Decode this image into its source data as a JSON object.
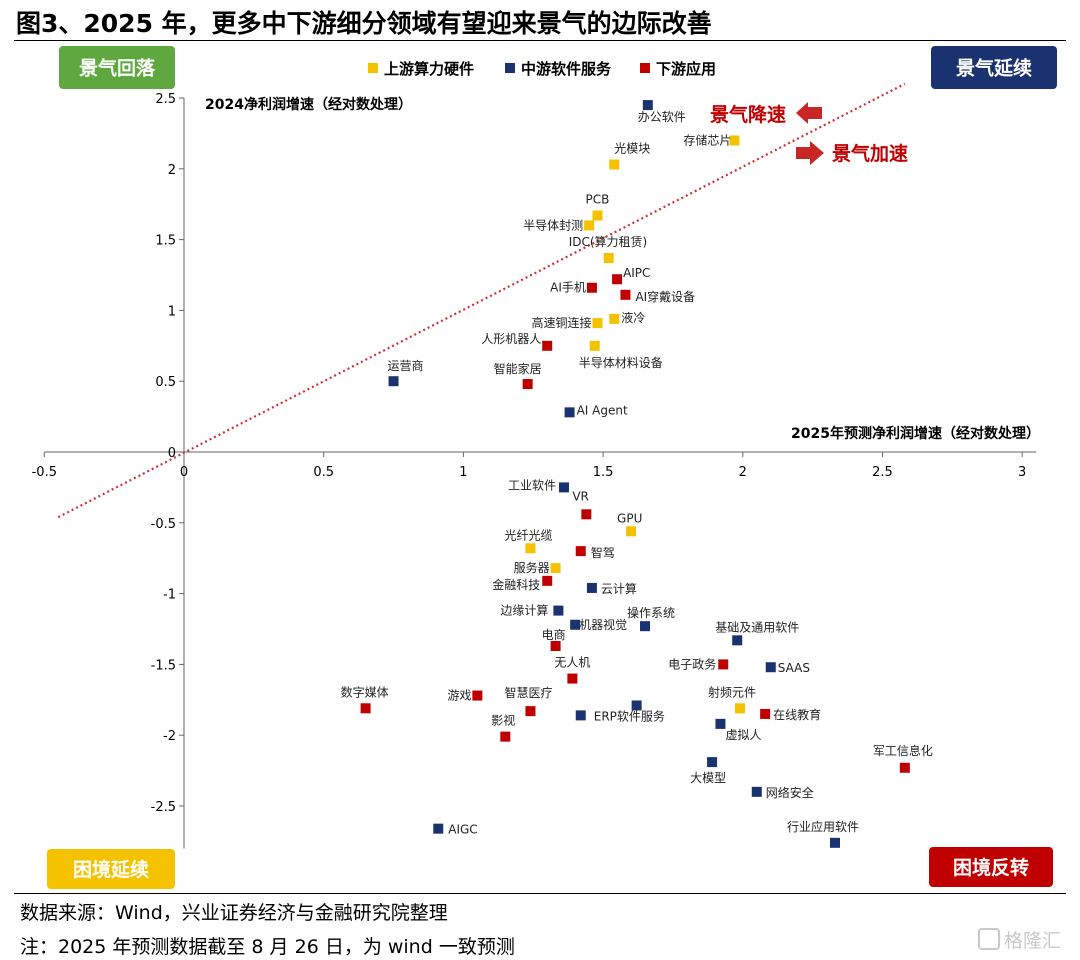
{
  "figure": {
    "title": "图3、2025 年，更多中下游细分领域有望迎来景气的边际改善",
    "source": "数据来源：Wind，兴业证券经济与金融研究院整理",
    "note": "注：2025 年预测数据截至 8 月 26 日，为 wind 一致预测",
    "watermark": "格隆汇"
  },
  "chart_data": {
    "type": "scatter",
    "xlabel": "2025年预测净利润增速（经对数处理）",
    "ylabel": "2024净利润增速（经对数处理）",
    "xlim": [
      -0.5,
      3
    ],
    "ylim": [
      -2.8,
      2.5
    ],
    "x_ticks": [
      "-0.5",
      "0",
      "0.5",
      "1",
      "1.5",
      "2",
      "2.5",
      "3"
    ],
    "y_ticks": [
      "2.5",
      "2",
      "1.5",
      "1",
      "0.5",
      "0",
      "-0.5",
      "-1",
      "-1.5",
      "-2",
      "-2.5"
    ],
    "x_tick_values": [
      -0.5,
      0,
      0.5,
      1,
      1.5,
      2,
      2.5,
      3
    ],
    "y_tick_values": [
      2.5,
      2,
      1.5,
      1,
      0.5,
      0,
      -0.5,
      -1,
      -1.5,
      -2,
      -2.5
    ],
    "grid": false,
    "legend_position": "top-center",
    "diagonal_line": {
      "from": [
        -0.45,
        -0.46
      ],
      "to": [
        2.58,
        2.6
      ],
      "color": "#d32f2f",
      "style": "dotted"
    },
    "series": [
      {
        "name": "上游算力硬件",
        "color": "#f5c200",
        "points": [
          {
            "label": "存储芯片",
            "x": 1.97,
            "y": 2.2
          },
          {
            "label": "光模块",
            "x": 1.54,
            "y": 2.03
          },
          {
            "label": "PCB",
            "x": 1.48,
            "y": 1.67
          },
          {
            "label": "半导体封测",
            "x": 1.45,
            "y": 1.6
          },
          {
            "label": "IDC(算力租赁)",
            "x": 1.52,
            "y": 1.37
          },
          {
            "label": "高速铜连接",
            "x": 1.48,
            "y": 0.91
          },
          {
            "label": "液冷",
            "x": 1.54,
            "y": 0.94
          },
          {
            "label": "半导体材料设备",
            "x": 1.47,
            "y": 0.75
          },
          {
            "label": "GPU",
            "x": 1.6,
            "y": -0.56
          },
          {
            "label": "光纤光缆",
            "x": 1.24,
            "y": -0.68
          },
          {
            "label": "服务器",
            "x": 1.33,
            "y": -0.82
          },
          {
            "label": "射频元件",
            "x": 1.99,
            "y": -1.81
          }
        ]
      },
      {
        "name": "中游软件服务",
        "color": "#1a3270",
        "points": [
          {
            "label": "办公软件",
            "x": 1.66,
            "y": 2.45
          },
          {
            "label": "运营商",
            "x": 0.75,
            "y": 0.5
          },
          {
            "label": "AI Agent",
            "x": 1.38,
            "y": 0.28
          },
          {
            "label": "工业软件",
            "x": 1.36,
            "y": -0.25
          },
          {
            "label": "云计算",
            "x": 1.46,
            "y": -0.96
          },
          {
            "label": "边缘计算",
            "x": 1.34,
            "y": -1.12
          },
          {
            "label": "机器视觉",
            "x": 1.4,
            "y": -1.22
          },
          {
            "label": "操作系统",
            "x": 1.65,
            "y": -1.23
          },
          {
            "label": "基础及通用软件",
            "x": 1.98,
            "y": -1.33
          },
          {
            "label": "SAAS",
            "x": 2.1,
            "y": -1.52
          },
          {
            "label": "ERP软件服务",
            "x": 1.42,
            "y": -1.86
          },
          {
            "label": "",
            "x": 1.62,
            "y": -1.79
          },
          {
            "label": "虚拟人",
            "x": 1.92,
            "y": -1.92
          },
          {
            "label": "大模型",
            "x": 1.89,
            "y": -2.19
          },
          {
            "label": "网络安全",
            "x": 2.05,
            "y": -2.4
          },
          {
            "label": "AIGC",
            "x": 0.91,
            "y": -2.66
          },
          {
            "label": "行业应用软件",
            "x": 2.33,
            "y": -2.76
          }
        ]
      },
      {
        "name": "下游应用",
        "color": "#c00000",
        "points": [
          {
            "label": "AIPC",
            "x": 1.55,
            "y": 1.22
          },
          {
            "label": "AI手机",
            "x": 1.46,
            "y": 1.16
          },
          {
            "label": "AI穿戴设备",
            "x": 1.58,
            "y": 1.11
          },
          {
            "label": "人形机器人",
            "x": 1.3,
            "y": 0.75
          },
          {
            "label": "智能家居",
            "x": 1.23,
            "y": 0.48
          },
          {
            "label": "VR",
            "x": 1.44,
            "y": -0.44
          },
          {
            "label": "智驾",
            "x": 1.42,
            "y": -0.7
          },
          {
            "label": "金融科技",
            "x": 1.3,
            "y": -0.91
          },
          {
            "label": "电商",
            "x": 1.33,
            "y": -1.37
          },
          {
            "label": "电子政务",
            "x": 1.93,
            "y": -1.5
          },
          {
            "label": "无人机",
            "x": 1.39,
            "y": -1.6
          },
          {
            "label": "游戏",
            "x": 1.05,
            "y": -1.72
          },
          {
            "label": "数字媒体",
            "x": 0.65,
            "y": -1.81
          },
          {
            "label": "智慧医疗",
            "x": 1.24,
            "y": -1.83
          },
          {
            "label": "在线教育",
            "x": 2.08,
            "y": -1.85
          },
          {
            "label": "影视",
            "x": 1.15,
            "y": -2.01
          },
          {
            "label": "军工信息化",
            "x": 2.58,
            "y": -2.23
          }
        ]
      }
    ],
    "quadrants": [
      {
        "label": "景气回落",
        "position": "top-left",
        "color": "#5fa83f"
      },
      {
        "label": "景气延续",
        "position": "top-right",
        "color": "#1a3270"
      },
      {
        "label": "困境延续",
        "position": "bottom-left",
        "color": "#f5c200"
      },
      {
        "label": "困境反转",
        "position": "bottom-right",
        "color": "#c00000"
      }
    ],
    "annotations": [
      {
        "text": "景气降速",
        "arrow": "left",
        "color": "#c00000"
      },
      {
        "text": "景气加速",
        "arrow": "right",
        "color": "#c00000"
      }
    ]
  }
}
